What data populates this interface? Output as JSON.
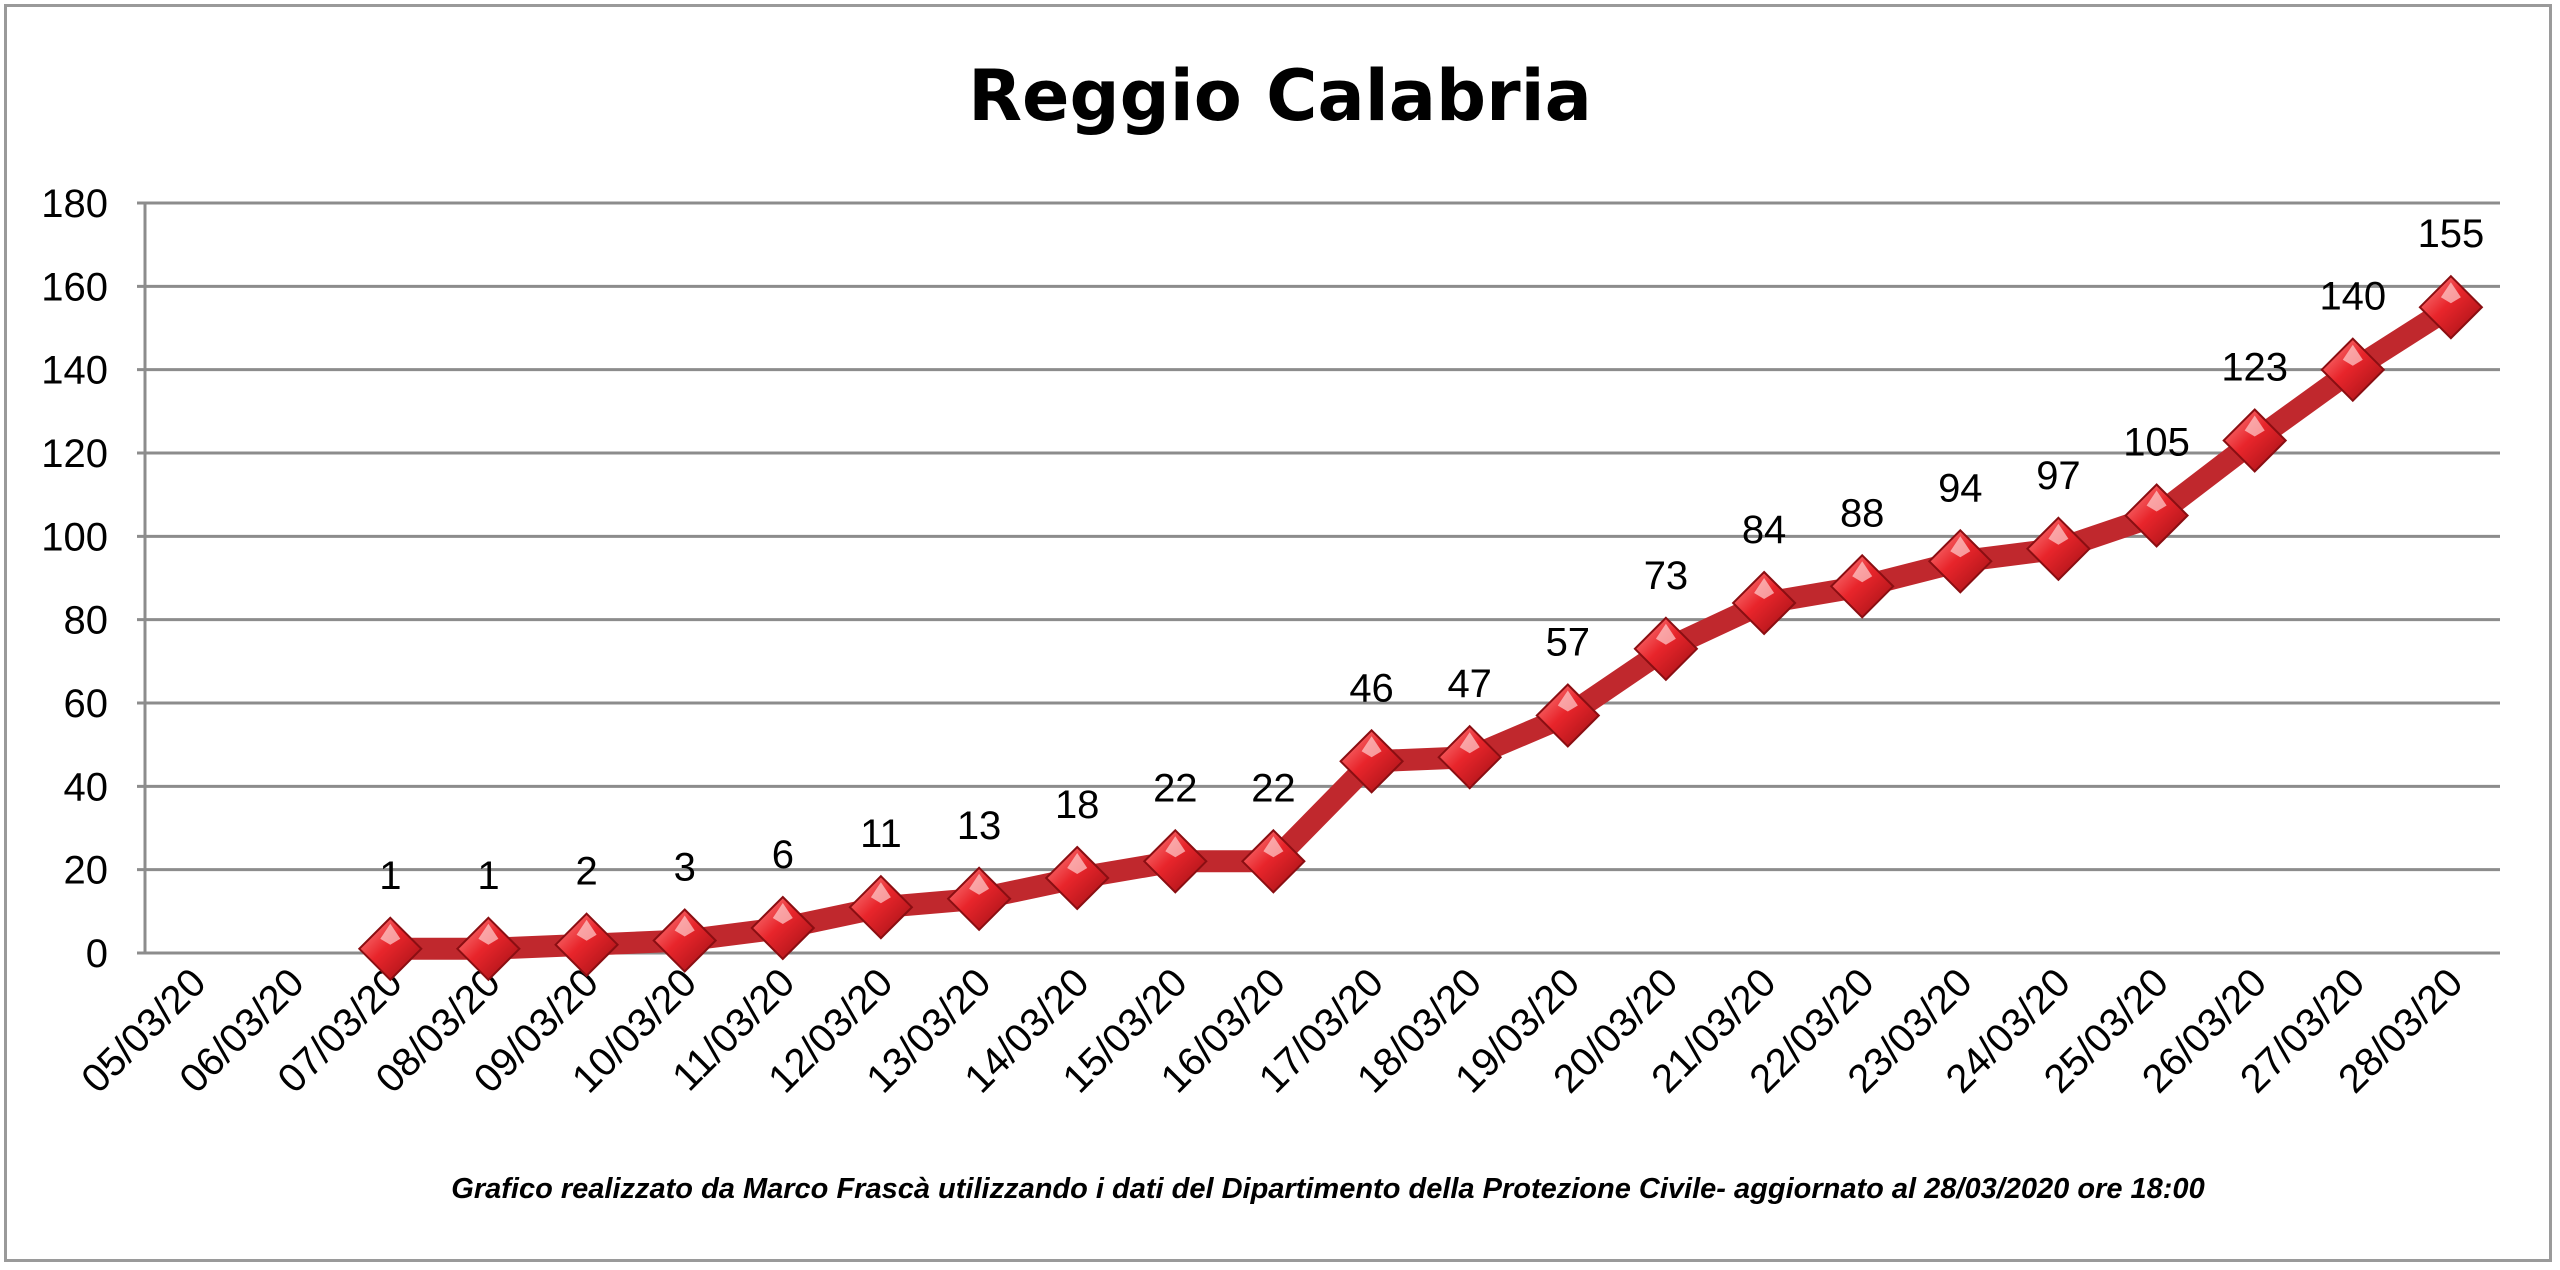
{
  "chart_data": {
    "type": "line",
    "title": "Reggio Calabria",
    "footnote": "Grafico  realizzato da Marco Frascà  utilizzando i dati del Dipartimento  della Protezione Civile- aggiornato al 28/03/2020 ore 18:00",
    "categories": [
      "05/03/20",
      "06/03/20",
      "07/03/20",
      "08/03/20",
      "09/03/20",
      "10/03/20",
      "11/03/20",
      "12/03/20",
      "13/03/20",
      "14/03/20",
      "15/03/20",
      "16/03/20",
      "17/03/20",
      "18/03/20",
      "19/03/20",
      "20/03/20",
      "21/03/20",
      "22/03/20",
      "23/03/20",
      "24/03/20",
      "25/03/20",
      "26/03/20",
      "27/03/20",
      "28/03/20"
    ],
    "series": [
      {
        "values": [
          null,
          null,
          1,
          1,
          2,
          3,
          6,
          11,
          13,
          18,
          22,
          22,
          46,
          47,
          57,
          73,
          84,
          88,
          94,
          97,
          105,
          123,
          140,
          155
        ],
        "color": "#c0282d",
        "marker": "diamond",
        "marker_color": "#e8252b"
      }
    ],
    "ylim": [
      0,
      180
    ],
    "yticks": [
      "0",
      "20",
      "40",
      "60",
      "80",
      "100",
      "120",
      "140",
      "160",
      "180"
    ],
    "ytick_values": [
      0,
      20,
      40,
      60,
      80,
      100,
      120,
      140,
      160,
      180
    ],
    "grid": true,
    "legend": "none",
    "xlabel": "",
    "ylabel": ""
  }
}
